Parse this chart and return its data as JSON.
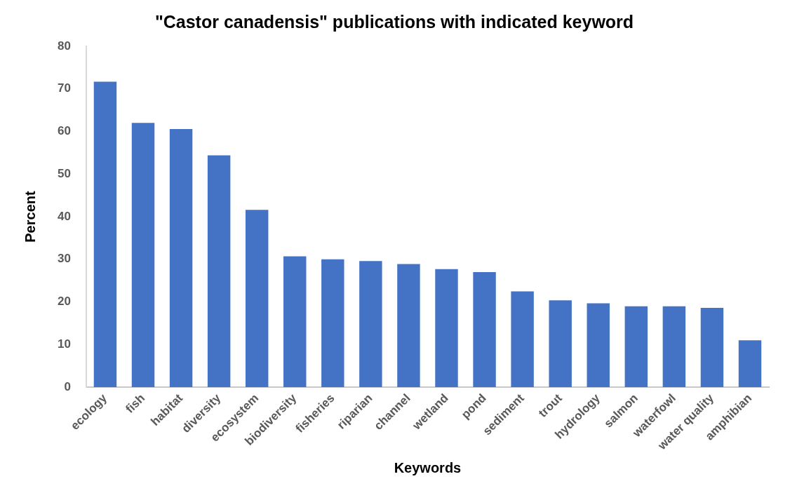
{
  "chart_data": {
    "type": "bar",
    "title": "\"Castor canadensis\" publications with indicated keyword",
    "xlabel": "Keywords",
    "ylabel": "Percent",
    "categories": [
      "ecology",
      "fish",
      "habitat",
      "diversity",
      "ecosystem",
      "biodiversity",
      "fisheries",
      "riparian",
      "channel",
      "wetland",
      "pond",
      "sediment",
      "trout",
      "hydrology",
      "salmon",
      "waterfowl",
      "water quality",
      "amphibian"
    ],
    "values": [
      71.7,
      62.0,
      60.6,
      54.4,
      41.6,
      30.7,
      30.0,
      29.6,
      28.9,
      27.7,
      27.0,
      22.5,
      20.4,
      19.7,
      19.0,
      19.0,
      18.6,
      11.0
    ],
    "color": "#4472c4",
    "ylim": [
      0,
      80
    ],
    "yticks": [
      0,
      10,
      20,
      30,
      40,
      50,
      60,
      70,
      80
    ]
  }
}
